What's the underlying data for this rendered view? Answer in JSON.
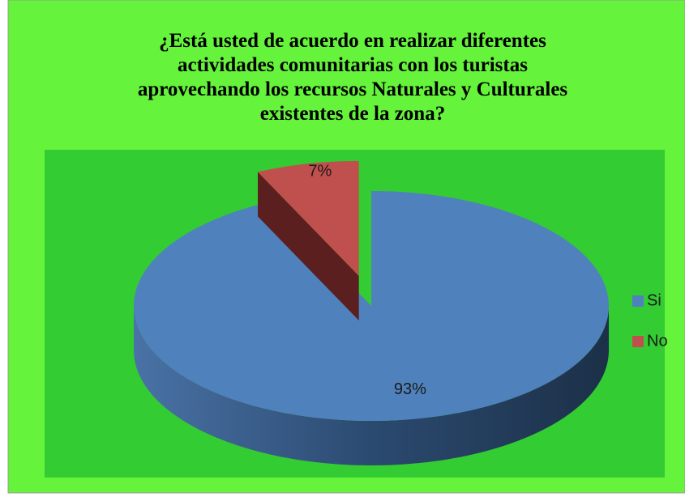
{
  "chart_data": {
    "type": "pie",
    "title": "¿Está usted de acuerdo en realizar diferentes actividades comunitarias con los turistas aprovechando los recursos Naturales y Culturales existentes de la zona?",
    "title_lines": [
      "¿Está usted de acuerdo en realizar diferentes",
      "actividades comunitarias con los turistas",
      "aprovechando los recursos Naturales y Culturales",
      "existentes de la zona?"
    ],
    "categories": [
      "Si",
      "No"
    ],
    "values": [
      93,
      7
    ],
    "value_labels": [
      "93%",
      "7%"
    ],
    "colors": [
      "#4f81bd",
      "#c0504d"
    ],
    "legend": "right"
  }
}
